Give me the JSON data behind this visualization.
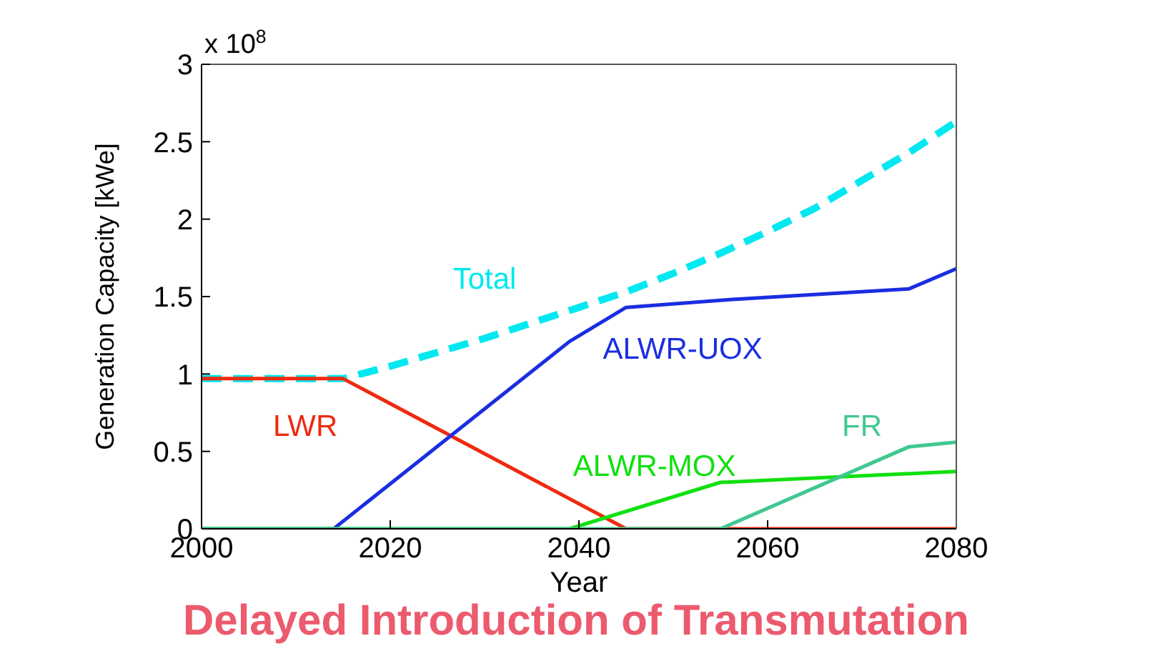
{
  "chart_data": {
    "type": "line",
    "title": "Delayed Introduction of Transmutation",
    "xlabel": "Year",
    "ylabel": "Generation Capacity [kWe]",
    "annotations": [
      "x 10$^{8}$"
    ],
    "xlim": [
      2000,
      2080
    ],
    "xticks": [
      2000,
      2020,
      2040,
      2060,
      2080
    ],
    "ylim": [
      0,
      3
    ],
    "yticks": [
      0,
      0.5,
      1,
      1.5,
      2,
      2.5,
      3
    ],
    "grid": false,
    "marker": "none",
    "series": [
      {
        "name": "Total",
        "color": "#00e8f0",
        "line_style": "dashed",
        "x": [
          2000,
          2015,
          2020,
          2025,
          2030,
          2035,
          2040,
          2045,
          2050,
          2055,
          2060,
          2065,
          2070,
          2075,
          2080
        ],
        "values": [
          0.97,
          0.97,
          1.05,
          1.14,
          1.23,
          1.33,
          1.43,
          1.53,
          1.65,
          1.78,
          1.92,
          2.07,
          2.25,
          2.43,
          2.63
        ]
      },
      {
        "name": "LWR",
        "color": "#ee2a10",
        "line_style": "solid",
        "x": [
          2000,
          2015,
          2045,
          2080
        ],
        "values": [
          0.97,
          0.97,
          0,
          0
        ]
      },
      {
        "name": "ALWR-UOX",
        "color": "#1a2ee0",
        "line_style": "solid",
        "x": [
          2000,
          2014,
          2039,
          2045,
          2056,
          2075,
          2080
        ],
        "values": [
          0,
          0,
          1.21,
          1.43,
          1.48,
          1.55,
          1.68
        ]
      },
      {
        "name": "ALWR-MOX",
        "color": "#10e010",
        "line_style": "solid",
        "x": [
          2000,
          2039,
          2055,
          2080
        ],
        "values": [
          0,
          0,
          0.3,
          0.37
        ]
      },
      {
        "name": "FR",
        "color": "#40c890",
        "line_style": "solid",
        "x": [
          2000,
          2055,
          2075,
          2080
        ],
        "values": [
          0,
          0,
          0.53,
          0.56
        ]
      }
    ]
  }
}
